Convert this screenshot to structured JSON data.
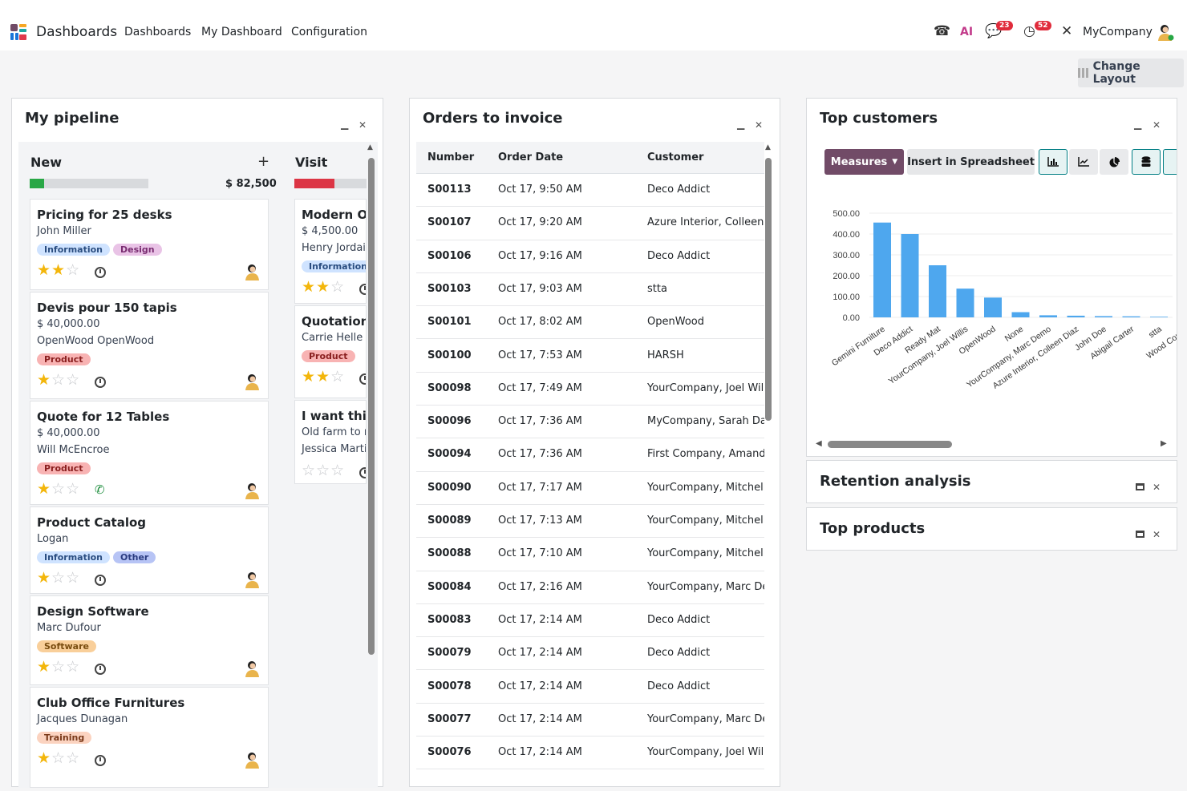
{
  "nav": {
    "app_name": "Dashboards",
    "items": [
      "Dashboards",
      "My Dashboard",
      "Configuration"
    ],
    "chat_badge": "23",
    "activity_badge": "52",
    "company": "MyCompany",
    "ai_label": "AI",
    "phone_icon": "phone-icon",
    "chat_icon": "chat-icon",
    "activity_icon": "clock-icon",
    "debug_icon": "tools-icon"
  },
  "change_layout": "Change Layout",
  "pipeline": {
    "title": "My pipeline",
    "columns": [
      {
        "name": "New",
        "total": "$ 82,500",
        "progress": 0.12,
        "progress_color": "#28a745",
        "cards": [
          {
            "title": "Pricing for 25 desks",
            "lines": [
              "John Miller"
            ],
            "tags": [
              {
                "label": "Information",
                "bg": "#cfe3ff",
                "fg": "#2a4d80"
              },
              {
                "label": "Design",
                "bg": "#e9c3e6",
                "fg": "#7a2d72"
              }
            ],
            "stars": 2,
            "activity": "clock"
          },
          {
            "title": "Devis pour 150 tapis",
            "lines": [
              "$ 40,000.00",
              "OpenWood  OpenWood"
            ],
            "tags": [
              {
                "label": "Product",
                "bg": "#f8b3b3",
                "fg": "#8a1f1f"
              }
            ],
            "stars": 1,
            "activity": "clock"
          },
          {
            "title": "Quote for 12 Tables",
            "lines": [
              "$ 40,000.00",
              "Will McEncroe"
            ],
            "tags": [
              {
                "label": "Product",
                "bg": "#f8b3b3",
                "fg": "#8a1f1f"
              }
            ],
            "stars": 1,
            "activity": "phone"
          },
          {
            "title": "Product Catalog",
            "lines": [
              "Logan"
            ],
            "tags": [
              {
                "label": "Information",
                "bg": "#cfe3ff",
                "fg": "#2a4d80"
              },
              {
                "label": "Other",
                "bg": "#b7c4f5",
                "fg": "#2a3b80"
              }
            ],
            "stars": 1,
            "activity": "clock"
          },
          {
            "title": "Design Software",
            "lines": [
              "Marc Dufour"
            ],
            "tags": [
              {
                "label": "Software",
                "bg": "#f9cf9a",
                "fg": "#7a4d10"
              }
            ],
            "stars": 1,
            "activity": "clock"
          },
          {
            "title": "Club Office Furnitures",
            "lines": [
              "Jacques Dunagan"
            ],
            "tags": [
              {
                "label": "Training",
                "bg": "#fbd3c0",
                "fg": "#7a3a1a"
              }
            ],
            "stars": 1,
            "activity": "clock"
          }
        ]
      },
      {
        "name": "Visit",
        "progress": 0.55,
        "progress_color": "#dc3545",
        "cards": [
          {
            "title": "Modern Op",
            "lines": [
              "$ 4,500.00",
              "Henry Jordai"
            ],
            "tags": [
              {
                "label": "Information",
                "bg": "#cfe3ff",
                "fg": "#2a4d80"
              }
            ],
            "stars": 2,
            "activity": "clock"
          },
          {
            "title": "Quotation f",
            "lines": [
              "Carrie Helle"
            ],
            "tags": [
              {
                "label": "Product",
                "bg": "#f8b3b3",
                "fg": "#8a1f1f"
              }
            ],
            "stars": 2,
            "activity": "clock"
          },
          {
            "title": "I want this l",
            "lines": [
              "Old farm to r",
              "Jessica Marti"
            ],
            "tags": [],
            "stars": 0,
            "activity": "clock"
          }
        ]
      }
    ]
  },
  "orders": {
    "title": "Orders to invoice",
    "headers": [
      "Number",
      "Order Date",
      "Customer"
    ],
    "rows": [
      [
        "S00113",
        "Oct 17, 9:50 AM",
        "Deco Addict"
      ],
      [
        "S00107",
        "Oct 17, 9:20 AM",
        "Azure Interior, Colleen"
      ],
      [
        "S00106",
        "Oct 17, 9:16 AM",
        "Deco Addict"
      ],
      [
        "S00103",
        "Oct 17, 9:03 AM",
        "stta"
      ],
      [
        "S00101",
        "Oct 17, 8:02 AM",
        "OpenWood"
      ],
      [
        "S00100",
        "Oct 17, 7:53 AM",
        "HARSH"
      ],
      [
        "S00098",
        "Oct 17, 7:49 AM",
        "YourCompany, Joel Wil"
      ],
      [
        "S00096",
        "Oct 17, 7:36 AM",
        "MyCompany, Sarah Dav"
      ],
      [
        "S00094",
        "Oct 17, 7:36 AM",
        "First Company, Amand"
      ],
      [
        "S00090",
        "Oct 17, 7:17 AM",
        "YourCompany, Mitchell"
      ],
      [
        "S00089",
        "Oct 17, 7:13 AM",
        "YourCompany, Mitchell"
      ],
      [
        "S00088",
        "Oct 17, 7:10 AM",
        "YourCompany, Mitchell"
      ],
      [
        "S00084",
        "Oct 17, 2:16 AM",
        "YourCompany, Marc De"
      ],
      [
        "S00083",
        "Oct 17, 2:14 AM",
        "Deco Addict"
      ],
      [
        "S00079",
        "Oct 17, 2:14 AM",
        "Deco Addict"
      ],
      [
        "S00078",
        "Oct 17, 2:14 AM",
        "Deco Addict"
      ],
      [
        "S00077",
        "Oct 17, 2:14 AM",
        "YourCompany, Marc De"
      ],
      [
        "S00076",
        "Oct 17, 2:14 AM",
        "YourCompany, Joel Wil"
      ]
    ]
  },
  "customers": {
    "title": "Top customers",
    "measures_label": "Measures",
    "spreadsheet_label": "Insert in Spreadsheet"
  },
  "chart_data": {
    "type": "bar",
    "categories": [
      "Gemini Furniture",
      "Deco Addict",
      "Ready Mat",
      "YourCompany, Joel Willis",
      "OpenWood",
      "None",
      "YourCompany, Marc Demo",
      "Azure Interior, Colleen Diaz",
      "John Doe",
      "Abigail Carter",
      "stta",
      "Wood Corner",
      "Woo"
    ],
    "values": [
      455,
      400,
      250,
      138,
      95,
      25,
      10,
      8,
      6,
      5,
      3,
      2,
      1
    ],
    "ylim": [
      0,
      500
    ],
    "yticks": [
      "0.00",
      "100.00",
      "200.00",
      "300.00",
      "400.00",
      "500.00"
    ],
    "color": "#4ea7ee",
    "grid": true
  },
  "retention": {
    "title": "Retention analysis"
  },
  "topproducts": {
    "title": "Top products"
  }
}
